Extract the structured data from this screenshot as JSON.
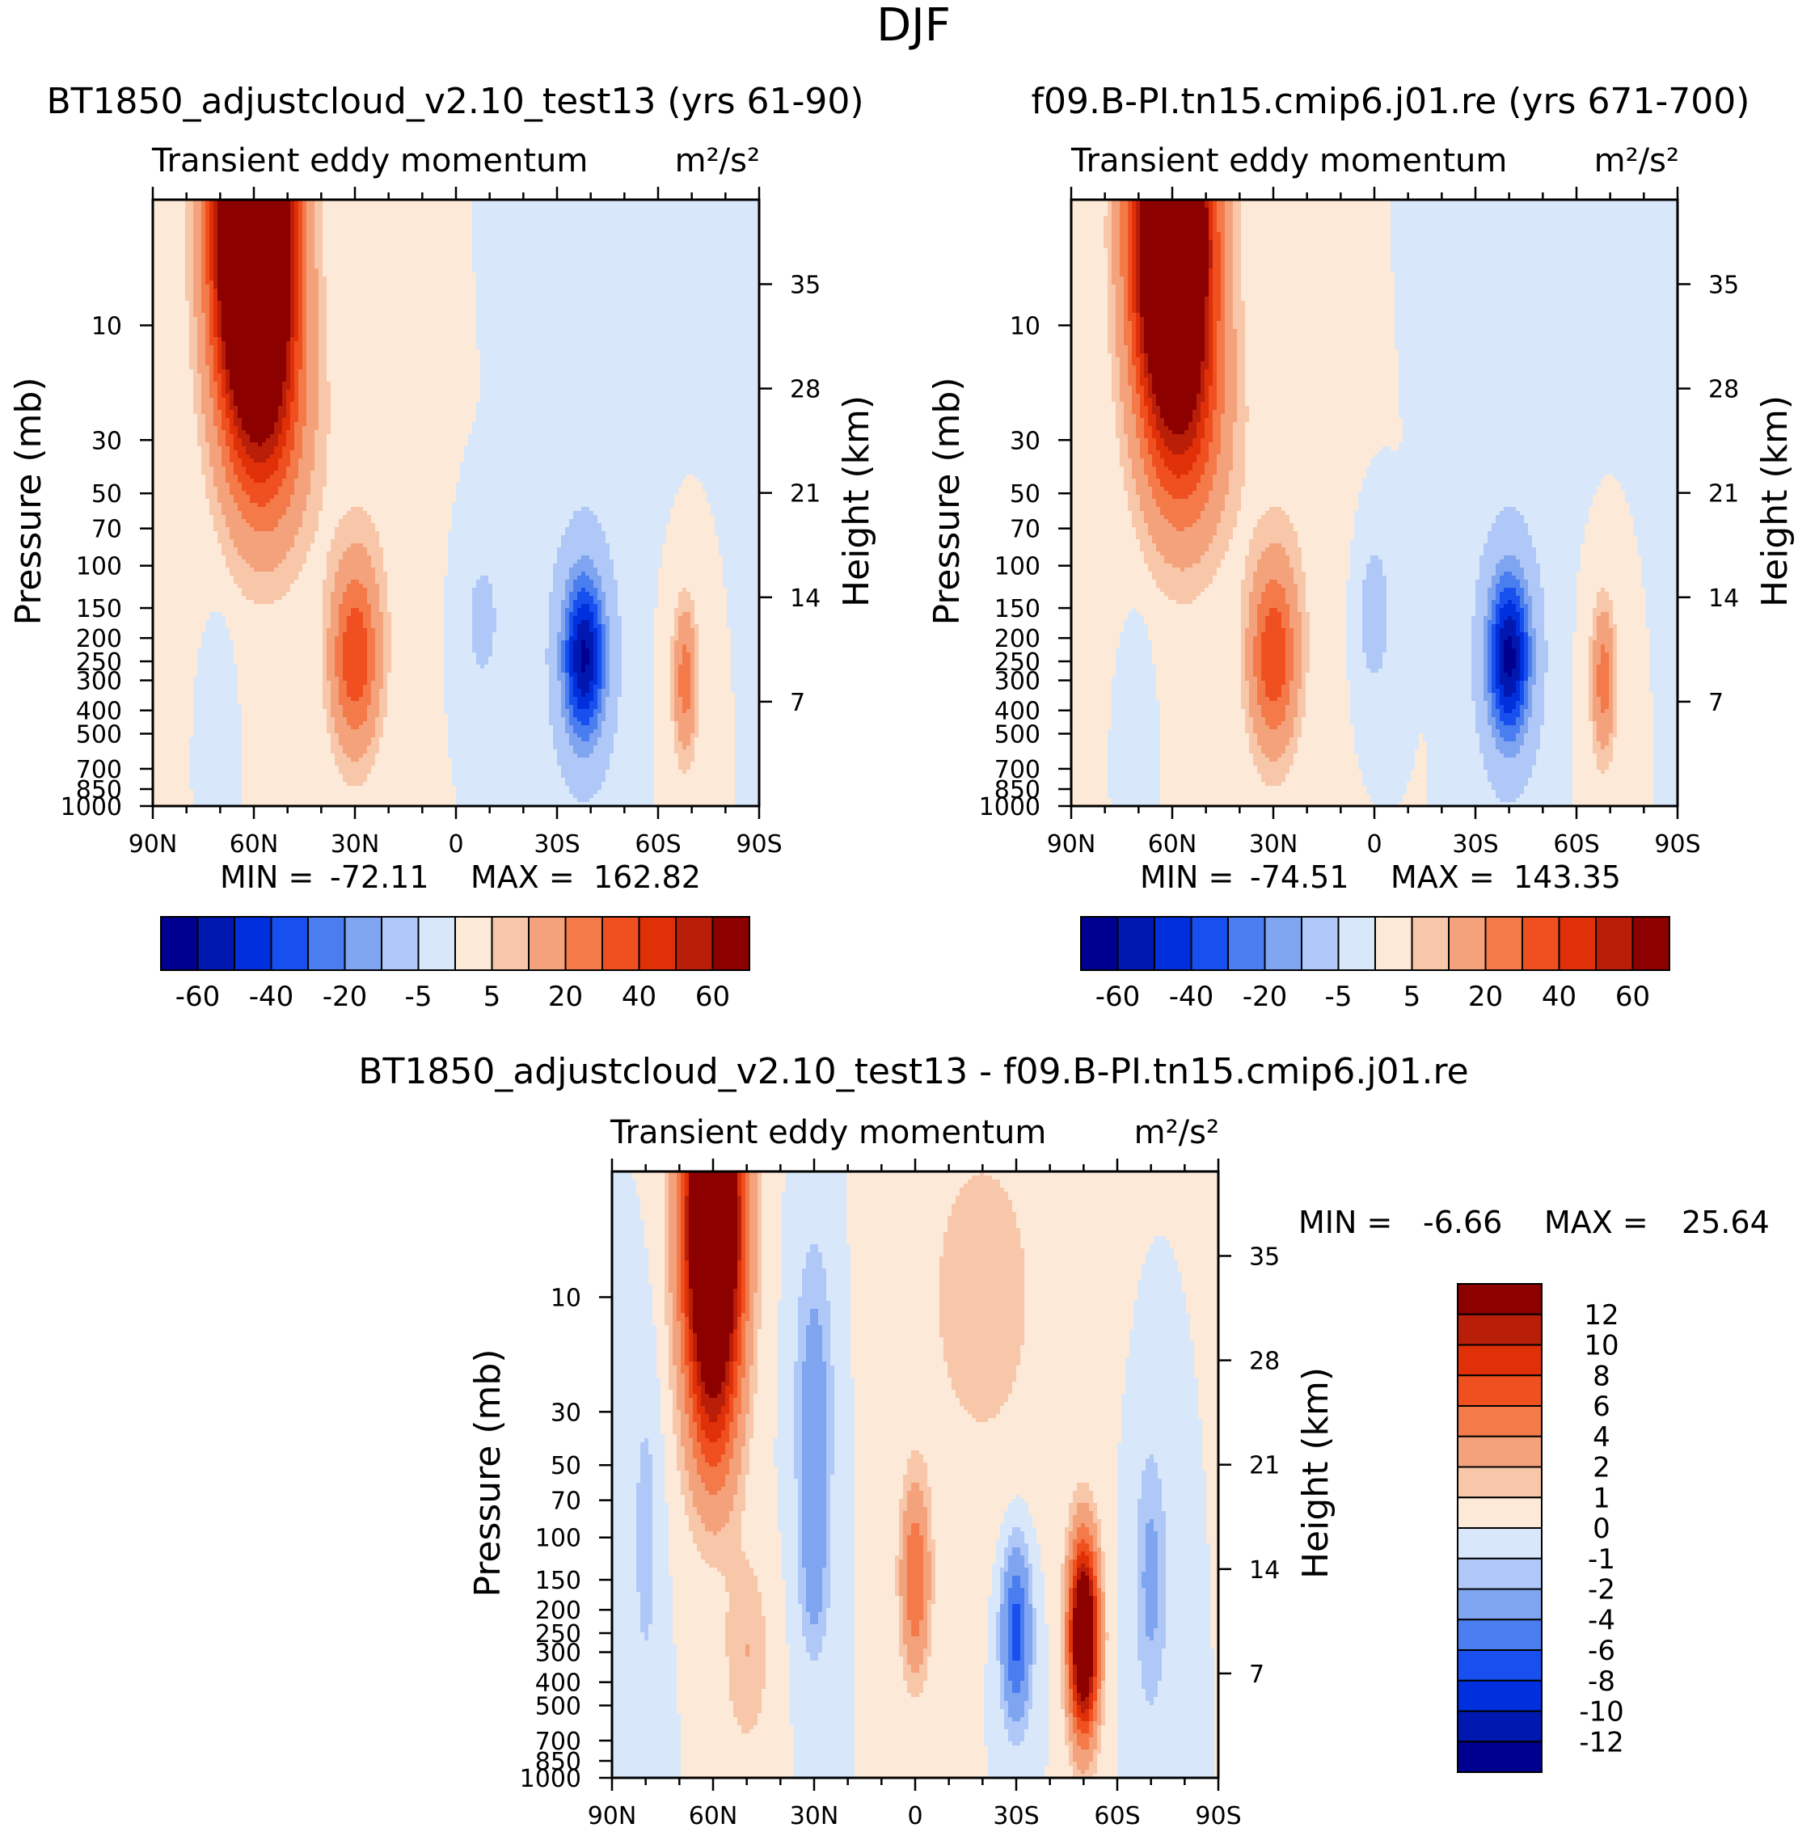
{
  "figure": {
    "title": "DJF"
  },
  "chart_data": [
    {
      "type": "heatmap",
      "subtitle": "BT1850_adjustcloud_v2.10_test13 (yrs 61-90)",
      "title": "Transient eddy momentum",
      "units": "m²/s²",
      "xlabel": "",
      "ylabel": "Pressure (mb)",
      "ylabel_right": "Height (km)",
      "x_ticks": [
        "90N",
        "60N",
        "30N",
        "0",
        "30S",
        "60S",
        "90S"
      ],
      "x_values": [
        90,
        60,
        30,
        0,
        -30,
        -60,
        -90
      ],
      "y_ticks": [
        "10",
        "30",
        "50",
        "70",
        "100",
        "150",
        "200",
        "250",
        "300",
        "400",
        "500",
        "700",
        "850",
        "1000"
      ],
      "y_values": [
        10,
        30,
        50,
        70,
        100,
        150,
        200,
        250,
        300,
        400,
        500,
        700,
        850,
        1000
      ],
      "ylim": [
        3,
        1000
      ],
      "height_ticks": [
        "35",
        "28",
        "21",
        "14",
        "7"
      ],
      "height_values": [
        35,
        28,
        21,
        14,
        7
      ],
      "min_label": "MIN =",
      "min_value": "-72.11",
      "max_label": "MAX =",
      "max_value": "162.82",
      "colorbar_labels": [
        "-60",
        "-40",
        "-20",
        "-5",
        "5",
        "20",
        "40",
        "60"
      ],
      "features": [
        {
          "lat": 60,
          "p": 4,
          "value": 165,
          "sx": 16,
          "sy": 1.1
        },
        {
          "lat": 55,
          "p": 25,
          "value": 25,
          "sx": 18,
          "sy": 0.8
        },
        {
          "lat": 30,
          "p": 240,
          "value": 38,
          "sx": 10,
          "sy": 0.55
        },
        {
          "lat": -38,
          "p": 240,
          "value": -72,
          "sx": 10,
          "sy": 0.55
        },
        {
          "lat": -68,
          "p": 300,
          "value": 25,
          "sx": 5,
          "sy": 0.45
        },
        {
          "lat": -8,
          "p": 170,
          "value": -7,
          "sx": 9,
          "sy": 0.5
        },
        {
          "lat": 70,
          "p": 320,
          "value": -5,
          "sx": 5,
          "sy": 0.4
        },
        {
          "lat": -40,
          "p": 8,
          "value": -3,
          "sx": 20,
          "sy": 1.0
        },
        {
          "lat": 25,
          "p": 60,
          "value": 3,
          "sx": 20,
          "sy": 1.2
        }
      ]
    },
    {
      "type": "heatmap",
      "subtitle": "f09.B-PI.tn15.cmip6.j01.re (yrs 671-700)",
      "title": "Transient eddy momentum",
      "units": "m²/s²",
      "xlabel": "",
      "ylabel": "Pressure (mb)",
      "ylabel_right": "Height (km)",
      "x_ticks": [
        "90N",
        "60N",
        "30N",
        "0",
        "30S",
        "60S",
        "90S"
      ],
      "x_values": [
        90,
        60,
        30,
        0,
        -30,
        -60,
        -90
      ],
      "y_ticks": [
        "10",
        "30",
        "50",
        "70",
        "100",
        "150",
        "200",
        "250",
        "300",
        "400",
        "500",
        "700",
        "850",
        "1000"
      ],
      "y_values": [
        10,
        30,
        50,
        70,
        100,
        150,
        200,
        250,
        300,
        400,
        500,
        700,
        850,
        1000
      ],
      "ylim": [
        3,
        1000
      ],
      "height_ticks": [
        "35",
        "28",
        "21",
        "14",
        "7"
      ],
      "height_values": [
        35,
        28,
        21,
        14,
        7
      ],
      "min_label": "MIN =",
      "min_value": "-74.51",
      "max_label": "MAX =",
      "max_value": "143.35",
      "colorbar_labels": [
        "-60",
        "-40",
        "-20",
        "-5",
        "5",
        "20",
        "40",
        "60"
      ],
      "features": [
        {
          "lat": 60,
          "p": 4,
          "value": 145,
          "sx": 16,
          "sy": 1.1
        },
        {
          "lat": 55,
          "p": 25,
          "value": 25,
          "sx": 18,
          "sy": 0.8
        },
        {
          "lat": 30,
          "p": 240,
          "value": 38,
          "sx": 10,
          "sy": 0.55
        },
        {
          "lat": -40,
          "p": 240,
          "value": -74,
          "sx": 10,
          "sy": 0.55
        },
        {
          "lat": -68,
          "p": 300,
          "value": 25,
          "sx": 5,
          "sy": 0.45
        },
        {
          "lat": 0,
          "p": 160,
          "value": -10,
          "sx": 7,
          "sy": 0.45
        },
        {
          "lat": 70,
          "p": 320,
          "value": -5,
          "sx": 5,
          "sy": 0.4
        },
        {
          "lat": -40,
          "p": 8,
          "value": -3,
          "sx": 20,
          "sy": 1.0
        },
        {
          "lat": 25,
          "p": 60,
          "value": 3,
          "sx": 20,
          "sy": 1.2
        }
      ]
    },
    {
      "type": "heatmap",
      "subtitle": "BT1850_adjustcloud_v2.10_test13 - f09.B-PI.tn15.cmip6.j01.re",
      "title": "Transient eddy momentum",
      "units": "m²/s²",
      "xlabel": "",
      "ylabel": "Pressure (mb)",
      "ylabel_right": "Height (km)",
      "x_ticks": [
        "90N",
        "60N",
        "30N",
        "0",
        "30S",
        "60S",
        "90S"
      ],
      "x_values": [
        90,
        60,
        30,
        0,
        -30,
        -60,
        -90
      ],
      "y_ticks": [
        "10",
        "30",
        "50",
        "70",
        "100",
        "150",
        "200",
        "250",
        "300",
        "400",
        "500",
        "700",
        "850",
        "1000"
      ],
      "y_values": [
        10,
        30,
        50,
        70,
        100,
        150,
        200,
        250,
        300,
        400,
        500,
        700,
        850,
        1000
      ],
      "ylim": [
        3,
        1000
      ],
      "height_ticks": [
        "35",
        "28",
        "21",
        "14",
        "7"
      ],
      "height_values": [
        35,
        28,
        21,
        14,
        7
      ],
      "min_label": "MIN =",
      "min_value": "-6.66",
      "max_label": "MAX =",
      "max_value": "25.64",
      "colorbar_labels": [
        "12",
        "10",
        "8",
        "6",
        "4",
        "2",
        "1",
        "0",
        "-1",
        "-2",
        "-4",
        "-6",
        "-8",
        "-10",
        "-12"
      ],
      "features": [
        {
          "lat": 60,
          "p": 5,
          "value": 26,
          "sx": 12,
          "sy": 1.0
        },
        {
          "lat": 60,
          "p": 30,
          "value": 4,
          "sx": 11,
          "sy": 0.7
        },
        {
          "lat": -50,
          "p": 260,
          "value": 20,
          "sx": 6,
          "sy": 0.55
        },
        {
          "lat": -30,
          "p": 250,
          "value": -7,
          "sx": 6,
          "sy": 0.5
        },
        {
          "lat": 0,
          "p": 150,
          "value": 6,
          "sx": 6,
          "sy": 0.55
        },
        {
          "lat": 30,
          "p": 30,
          "value": -3,
          "sx": 8,
          "sy": 1.0
        },
        {
          "lat": -70,
          "p": 150,
          "value": -2.5,
          "sx": 7,
          "sy": 0.8
        },
        {
          "lat": 30,
          "p": 150,
          "value": -2,
          "sx": 6,
          "sy": 0.5
        },
        {
          "lat": 50,
          "p": 300,
          "value": 2,
          "sx": 10,
          "sy": 0.6
        },
        {
          "lat": -20,
          "p": 10,
          "value": 1.5,
          "sx": 30,
          "sy": 1.2
        },
        {
          "lat": 80,
          "p": 100,
          "value": -1.5,
          "sx": 6,
          "sy": 1.0
        }
      ]
    }
  ],
  "palettes": {
    "full": [
      "#000090",
      "#0018B0",
      "#0030DD",
      "#1850F0",
      "#4A7EF0",
      "#7FA4F0",
      "#B0C8F8",
      "#D8E8FA",
      "#FDE9D8",
      "#F8C6A8",
      "#F4A27C",
      "#F47A4A",
      "#F05020",
      "#E03008",
      "#B81E08",
      "#8C0000"
    ],
    "full_levels": [
      -70,
      -60,
      -50,
      -40,
      -30,
      -20,
      -5,
      0,
      5,
      10,
      20,
      30,
      40,
      50,
      60
    ],
    "diff": [
      "#000090",
      "#0018B0",
      "#0030DD",
      "#1850F0",
      "#4A7EF0",
      "#7FA4F0",
      "#B0C8F8",
      "#D8E8FA",
      "#FDE9D8",
      "#F8C6A8",
      "#F4A27C",
      "#F47A4A",
      "#F05020",
      "#E03008",
      "#B81E08",
      "#8C0000"
    ],
    "diff_levels": [
      -12,
      -10,
      -8,
      -6,
      -4,
      -2,
      -1,
      0,
      1,
      2,
      4,
      6,
      8,
      10,
      12
    ]
  }
}
